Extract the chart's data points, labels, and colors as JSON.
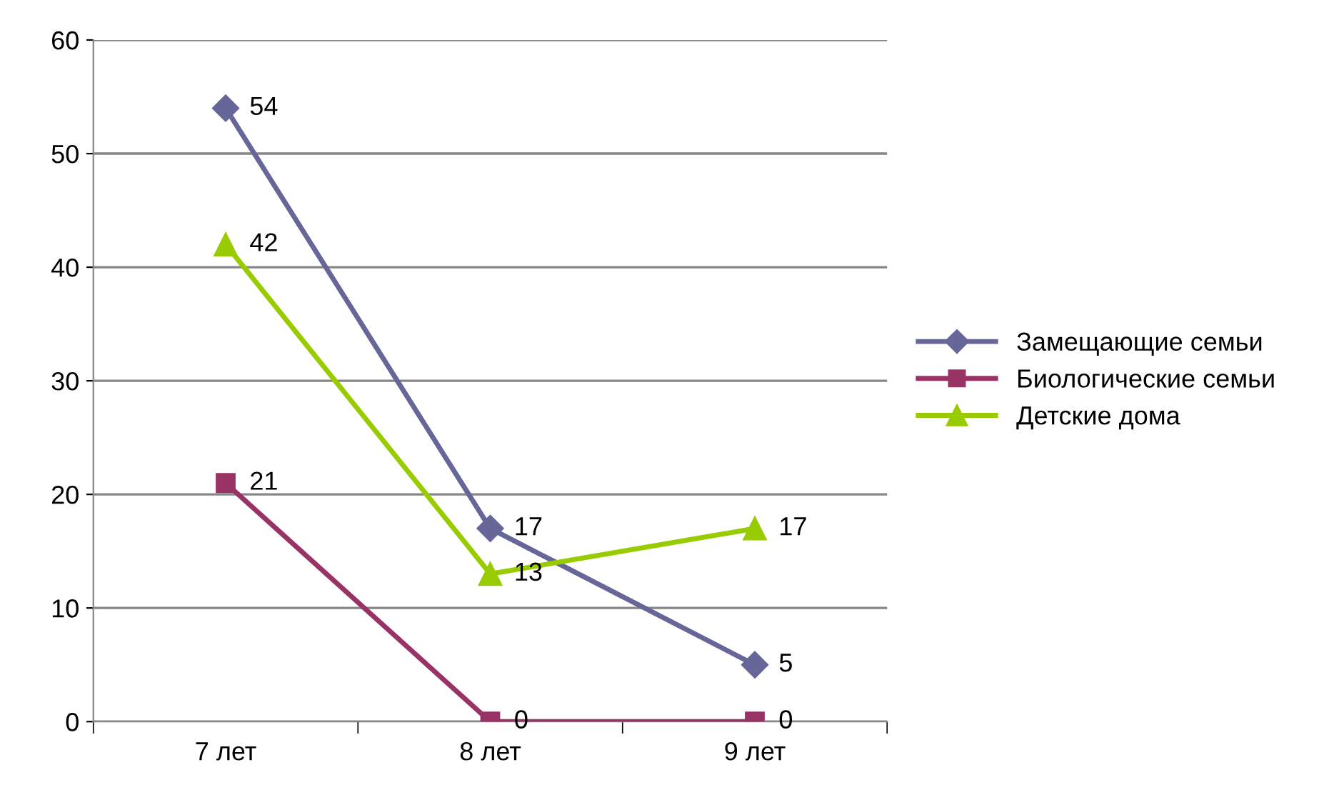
{
  "chart_data": {
    "type": "line",
    "categories": [
      "7 лет",
      "8 лет",
      "9 лет"
    ],
    "series": [
      {
        "name": "Замещающие семьи",
        "color": "#666699",
        "values": [
          54,
          17,
          5
        ],
        "marker": "diamond"
      },
      {
        "name": "Биологические семьи",
        "color": "#993366",
        "values": [
          21,
          0,
          0
        ],
        "marker": "square"
      },
      {
        "name": "Детские дома",
        "color": "#99cc00",
        "values": [
          42,
          13,
          17
        ],
        "marker": "triangle"
      }
    ],
    "ylim": [
      0,
      60
    ],
    "yticks": [
      0,
      10,
      20,
      30,
      40,
      50,
      60
    ],
    "grid": "y",
    "legend": "right",
    "data_labels": true,
    "line_style": "solid"
  }
}
